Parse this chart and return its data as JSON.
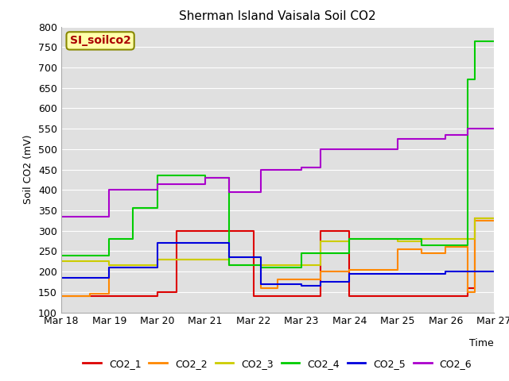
{
  "title": "Sherman Island Vaisala Soil CO2",
  "ylabel": "Soil CO2 (mV)",
  "xlabel": "Time",
  "ylim": [
    100,
    800
  ],
  "yticks": [
    100,
    150,
    200,
    250,
    300,
    350,
    400,
    450,
    500,
    550,
    600,
    650,
    700,
    750,
    800
  ],
  "bg_color": "#e0e0e0",
  "watermark_text": "SI_soilco2",
  "watermark_bg": "#ffffaa",
  "watermark_fg": "#aa0000",
  "series": {
    "CO2_1": {
      "color": "#dd0000",
      "x": [
        0.0,
        2.0,
        2.0,
        2.4,
        2.4,
        3.5,
        3.5,
        4.0,
        4.0,
        4.15,
        4.15,
        5.4,
        5.4,
        6.0,
        6.0,
        8.45,
        8.45,
        8.6,
        8.6,
        9.0
      ],
      "y": [
        140,
        140,
        150,
        150,
        300,
        300,
        300,
        300,
        140,
        140,
        140,
        140,
        300,
        300,
        140,
        140,
        160,
        160,
        330,
        330
      ]
    },
    "CO2_2": {
      "color": "#ff8800",
      "x": [
        0.0,
        0.6,
        0.6,
        1.0,
        1.0,
        2.0,
        2.0,
        3.5,
        3.5,
        4.15,
        4.15,
        4.5,
        4.5,
        5.0,
        5.0,
        5.4,
        5.4,
        6.0,
        6.0,
        7.0,
        7.0,
        7.5,
        7.5,
        8.0,
        8.0,
        8.45,
        8.45,
        8.6,
        8.6,
        9.0
      ],
      "y": [
        140,
        140,
        145,
        145,
        210,
        210,
        230,
        230,
        215,
        215,
        160,
        160,
        180,
        180,
        180,
        180,
        200,
        200,
        205,
        205,
        255,
        255,
        245,
        245,
        260,
        260,
        150,
        150,
        325,
        325
      ]
    },
    "CO2_3": {
      "color": "#cccc00",
      "x": [
        0.0,
        1.0,
        1.0,
        2.0,
        2.0,
        3.5,
        3.5,
        4.15,
        4.15,
        5.4,
        5.4,
        6.0,
        6.0,
        7.0,
        7.0,
        7.5,
        7.5,
        8.0,
        8.0,
        8.45,
        8.45,
        8.6,
        8.6,
        9.0
      ],
      "y": [
        225,
        225,
        215,
        215,
        230,
        230,
        235,
        235,
        215,
        215,
        275,
        275,
        280,
        280,
        275,
        275,
        280,
        280,
        280,
        280,
        280,
        280,
        330,
        330
      ]
    },
    "CO2_4": {
      "color": "#00cc00",
      "x": [
        0.0,
        1.0,
        1.0,
        1.5,
        1.5,
        2.0,
        2.0,
        3.0,
        3.0,
        3.5,
        3.5,
        4.15,
        4.15,
        5.0,
        5.0,
        5.4,
        5.4,
        6.0,
        6.0,
        7.0,
        7.0,
        7.5,
        7.5,
        8.0,
        8.0,
        8.45,
        8.45,
        8.6,
        8.6,
        9.0
      ],
      "y": [
        240,
        240,
        280,
        280,
        355,
        355,
        435,
        435,
        430,
        430,
        215,
        215,
        210,
        210,
        245,
        245,
        245,
        245,
        280,
        280,
        280,
        280,
        265,
        265,
        265,
        265,
        670,
        670,
        765,
        765
      ]
    },
    "CO2_5": {
      "color": "#0000dd",
      "x": [
        0.0,
        1.0,
        1.0,
        2.0,
        2.0,
        3.5,
        3.5,
        4.15,
        4.15,
        5.0,
        5.0,
        5.4,
        5.4,
        6.0,
        6.0,
        7.0,
        7.0,
        7.5,
        7.5,
        8.0,
        8.0,
        8.45,
        8.45,
        9.0
      ],
      "y": [
        185,
        185,
        210,
        210,
        270,
        270,
        235,
        235,
        170,
        170,
        165,
        165,
        175,
        175,
        195,
        195,
        195,
        195,
        195,
        195,
        200,
        200,
        200,
        200
      ]
    },
    "CO2_6": {
      "color": "#aa00cc",
      "x": [
        0.0,
        1.0,
        1.0,
        1.5,
        1.5,
        2.0,
        2.0,
        3.0,
        3.0,
        3.5,
        3.5,
        4.15,
        4.15,
        5.0,
        5.0,
        5.4,
        5.4,
        6.0,
        6.0,
        7.0,
        7.0,
        7.5,
        7.5,
        8.0,
        8.0,
        8.45,
        8.45,
        9.0
      ],
      "y": [
        335,
        335,
        400,
        400,
        400,
        400,
        415,
        415,
        430,
        430,
        395,
        395,
        450,
        450,
        455,
        455,
        500,
        500,
        500,
        500,
        525,
        525,
        525,
        525,
        535,
        535,
        550,
        550
      ]
    }
  },
  "xtick_positions": [
    0,
    1,
    2,
    3,
    4,
    5,
    6,
    7,
    8,
    9
  ],
  "xtick_labels": [
    "Mar 18",
    "Mar 19",
    "Mar 20",
    "Mar 21",
    "Mar 22",
    "Mar 23",
    "Mar 24",
    "Mar 25",
    "Mar 26",
    "Mar 27"
  ],
  "legend_entries": [
    "CO2_1",
    "CO2_2",
    "CO2_3",
    "CO2_4",
    "CO2_5",
    "CO2_6"
  ],
  "legend_colors": [
    "#dd0000",
    "#ff8800",
    "#cccc00",
    "#00cc00",
    "#0000dd",
    "#aa00cc"
  ]
}
